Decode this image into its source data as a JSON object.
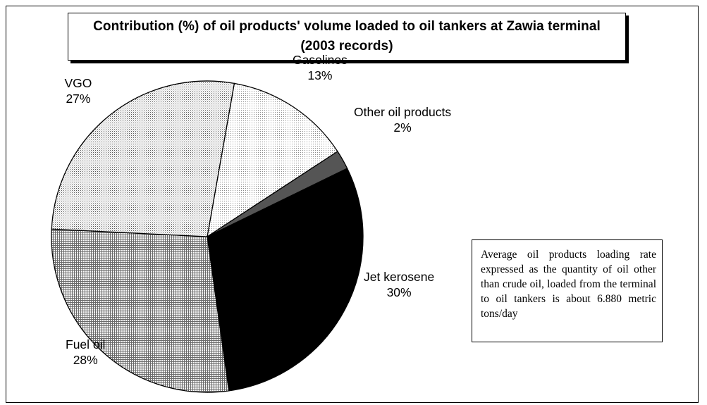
{
  "chart_data": {
    "type": "pie",
    "title": "Contribution (%) of oil products' volume loaded to oil tankers at Zawia terminal (2003 records)",
    "slices": [
      {
        "label": "Gasolines",
        "value": 13,
        "value_label": "13%",
        "pattern": "dots-light"
      },
      {
        "label": "Other oil products",
        "value": 2,
        "value_label": "2%",
        "pattern": "solid-dark-gray"
      },
      {
        "label": "Jet kerosene",
        "value": 30,
        "value_label": "30%",
        "pattern": "solid-black"
      },
      {
        "label": "Fuel oil",
        "value": 28,
        "value_label": "28%",
        "pattern": "crosshatch"
      },
      {
        "label": "VGO",
        "value": 27,
        "value_label": "27%",
        "pattern": "dots-medium"
      }
    ],
    "legend": "none",
    "annotation": "Average oil products loading rate expressed as the quantity of oil other than crude oil, loaded from the terminal to oil tankers is about 6.880 metric tons/day"
  },
  "colors": {
    "background": "#ffffff",
    "outline": "#000000",
    "jet_kerosene": "#000000",
    "other_oil_products": "#555555"
  }
}
